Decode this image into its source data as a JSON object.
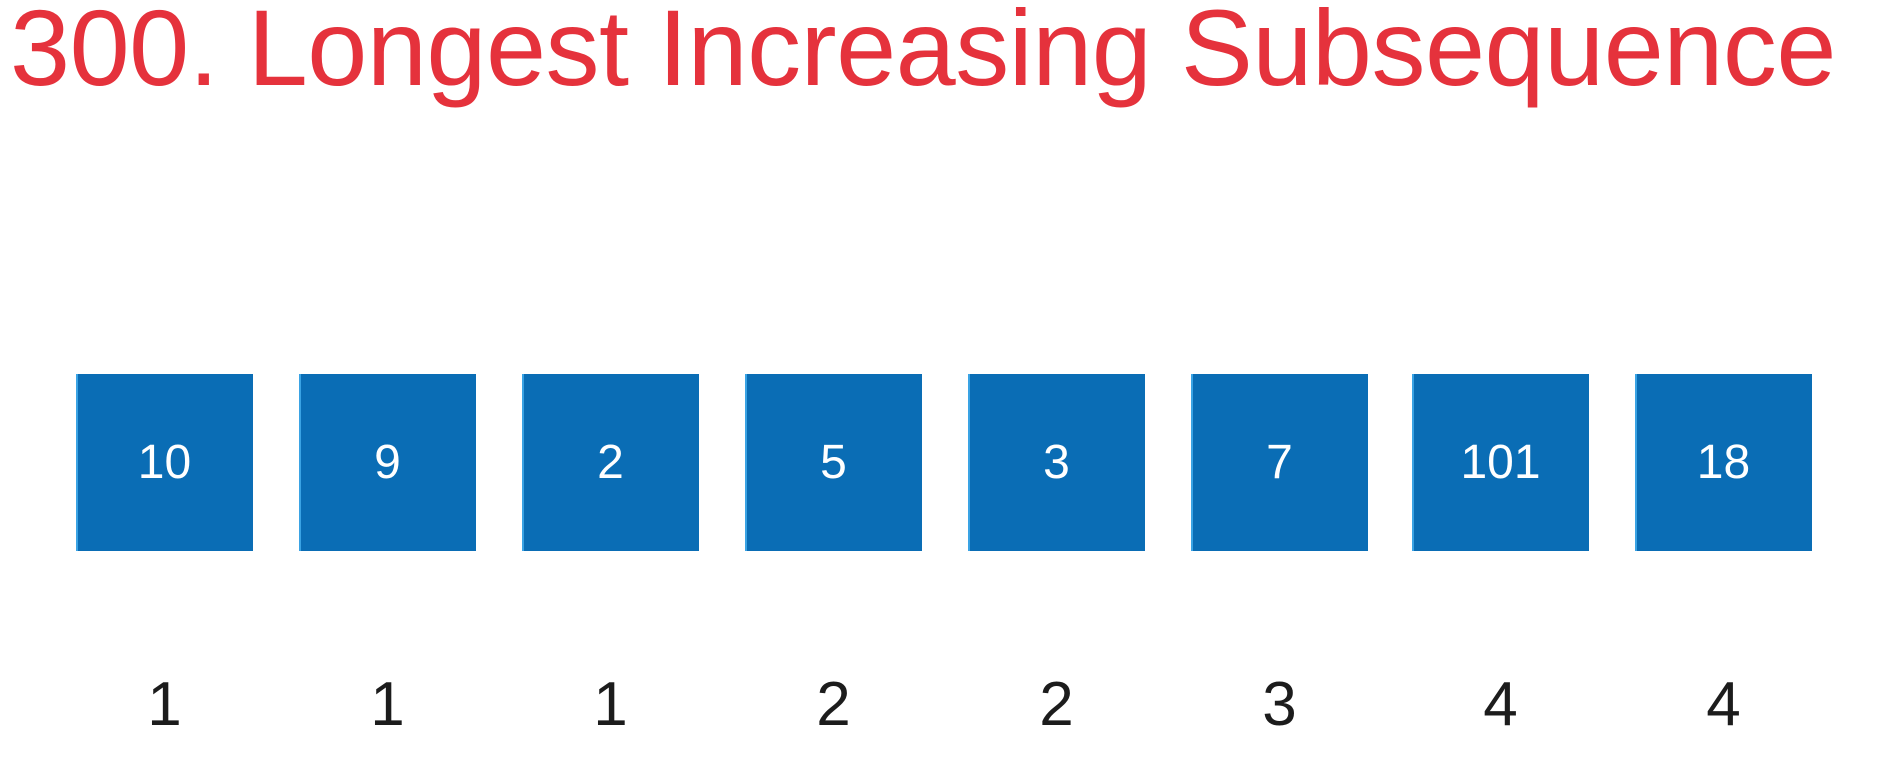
{
  "title": "300. Longest Increasing Subsequence",
  "colors": {
    "title": "#e5323c",
    "box_fill": "#0a6db5",
    "box_text": "#ffffff",
    "dp_text": "#1c1c1c"
  },
  "array": [
    "10",
    "9",
    "2",
    "5",
    "3",
    "7",
    "101",
    "18"
  ],
  "dp": [
    "1",
    "1",
    "1",
    "2",
    "2",
    "3",
    "4",
    "4"
  ]
}
